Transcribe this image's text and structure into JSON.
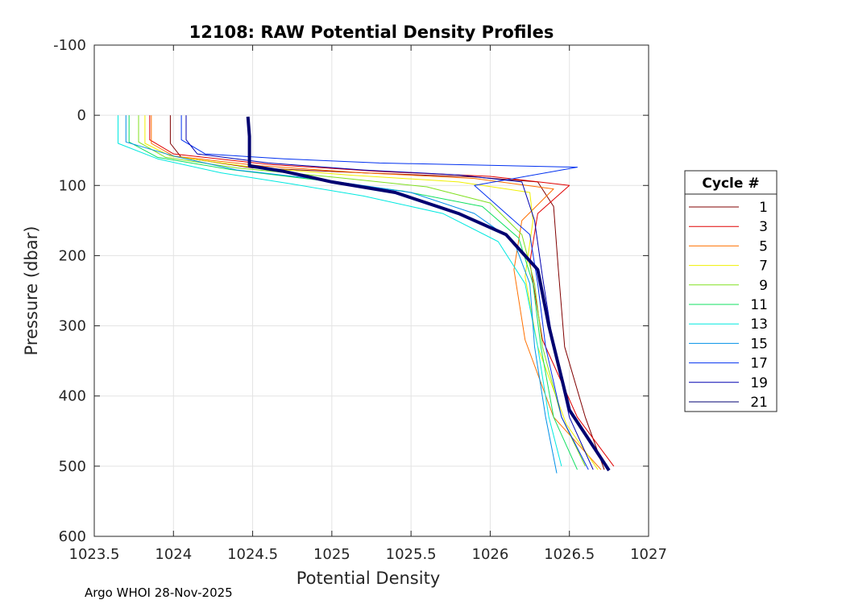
{
  "chart_data": {
    "type": "line",
    "title": "12108: RAW Potential Density Profiles",
    "xlabel": "Potential Density",
    "ylabel": "Pressure (dbar)",
    "xlim": [
      1023.5,
      1027
    ],
    "ylim": [
      -100,
      600
    ],
    "y_reversed": true,
    "xticks": [
      1023.5,
      1024,
      1024.5,
      1025,
      1025.5,
      1026,
      1026.5,
      1027
    ],
    "xtick_labels": [
      "1023.5",
      "1024",
      "1024.5",
      "1025",
      "1025.5",
      "1026",
      "1026.5",
      "1027"
    ],
    "yticks": [
      -100,
      0,
      100,
      200,
      300,
      400,
      500,
      600
    ],
    "ytick_labels": [
      "-100",
      "0",
      "100",
      "200",
      "300",
      "400",
      "500",
      "600"
    ],
    "grid": true,
    "legend_title": "Cycle #",
    "legend_position": "right",
    "series": [
      {
        "name": "1",
        "color": "#800000",
        "x": [
          1023.98,
          1023.98,
          1024.05,
          1024.5,
          1025.2,
          1025.9,
          1026.3,
          1026.4,
          1026.43,
          1026.47,
          1026.6,
          1026.72
        ],
        "y": [
          0,
          40,
          60,
          75,
          82,
          88,
          95,
          130,
          220,
          330,
          430,
          505
        ]
      },
      {
        "name": "3",
        "color": "#E00000",
        "x": [
          1023.85,
          1023.85,
          1024.0,
          1024.6,
          1025.3,
          1026.0,
          1026.5,
          1026.3,
          1026.25,
          1026.33,
          1026.55,
          1026.78
        ],
        "y": [
          0,
          35,
          55,
          70,
          80,
          87,
          100,
          140,
          210,
          320,
          430,
          500
        ]
      },
      {
        "name": "5",
        "color": "#FF7000",
        "x": [
          1023.86,
          1023.86,
          1024.0,
          1024.55,
          1025.2,
          1025.9,
          1026.4,
          1026.2,
          1026.15,
          1026.22,
          1026.4,
          1026.7
        ],
        "y": [
          0,
          40,
          58,
          72,
          82,
          90,
          105,
          150,
          220,
          320,
          430,
          505
        ]
      },
      {
        "name": "7",
        "color": "#F0F000",
        "x": [
          1023.82,
          1023.82,
          1023.98,
          1024.5,
          1025.1,
          1025.8,
          1026.25,
          1026.27,
          1026.22,
          1026.3,
          1026.48,
          1026.68
        ],
        "y": [
          0,
          40,
          58,
          74,
          85,
          95,
          110,
          150,
          230,
          330,
          440,
          505
        ]
      },
      {
        "name": "9",
        "color": "#80E020",
        "x": [
          1023.78,
          1023.78,
          1023.95,
          1024.4,
          1025.0,
          1025.6,
          1026.0,
          1026.2,
          1026.28,
          1026.33,
          1026.45,
          1026.6
        ],
        "y": [
          0,
          38,
          60,
          75,
          88,
          102,
          125,
          170,
          240,
          330,
          430,
          500
        ]
      },
      {
        "name": "11",
        "color": "#10E060",
        "x": [
          1023.72,
          1023.72,
          1023.9,
          1024.35,
          1024.9,
          1025.45,
          1025.95,
          1026.18,
          1026.27,
          1026.32,
          1026.4,
          1026.55
        ],
        "y": [
          0,
          38,
          60,
          77,
          92,
          108,
          130,
          175,
          240,
          330,
          430,
          505
        ]
      },
      {
        "name": "13",
        "color": "#00E8E0",
        "x": [
          1023.65,
          1023.65,
          1023.9,
          1024.3,
          1024.75,
          1025.2,
          1025.7,
          1026.05,
          1026.22,
          1026.3,
          1026.37,
          1026.45
        ],
        "y": [
          0,
          40,
          62,
          82,
          98,
          115,
          140,
          180,
          240,
          330,
          430,
          500
        ]
      },
      {
        "name": "15",
        "color": "#0090E8",
        "x": [
          1023.7,
          1023.7,
          1024.0,
          1024.4,
          1024.95,
          1025.5,
          1025.9,
          1026.15,
          1026.25,
          1026.28,
          1026.35,
          1026.42
        ],
        "y": [
          0,
          38,
          58,
          78,
          92,
          110,
          140,
          180,
          240,
          330,
          430,
          510
        ]
      },
      {
        "name": "17",
        "color": "#0030F0",
        "x": [
          1024.05,
          1024.05,
          1024.2,
          1024.7,
          1025.3,
          1026.55,
          1025.9,
          1026.25,
          1026.3,
          1026.35,
          1026.45,
          1026.62
        ],
        "y": [
          0,
          35,
          55,
          62,
          68,
          74,
          100,
          170,
          240,
          330,
          430,
          505
        ]
      },
      {
        "name": "19",
        "color": "#0000B0",
        "x": [
          1024.08,
          1024.08,
          1024.15,
          1024.6,
          1025.2,
          1025.8,
          1026.2,
          1026.28,
          1026.33,
          1026.4,
          1026.5,
          1026.65
        ],
        "y": [
          0,
          35,
          55,
          68,
          78,
          85,
          95,
          150,
          230,
          330,
          430,
          505
        ]
      },
      {
        "name": "21",
        "color": "#000070",
        "x": [
          1024.47,
          1024.48,
          1024.48,
          1024.7,
          1025.0,
          1025.4,
          1025.8,
          1026.1,
          1026.3,
          1026.37,
          1026.5,
          1026.75
        ],
        "y": [
          2,
          30,
          72,
          80,
          95,
          110,
          140,
          170,
          220,
          300,
          420,
          506
        ]
      }
    ]
  },
  "footer": "Argo WHOI 28-Nov-2025"
}
